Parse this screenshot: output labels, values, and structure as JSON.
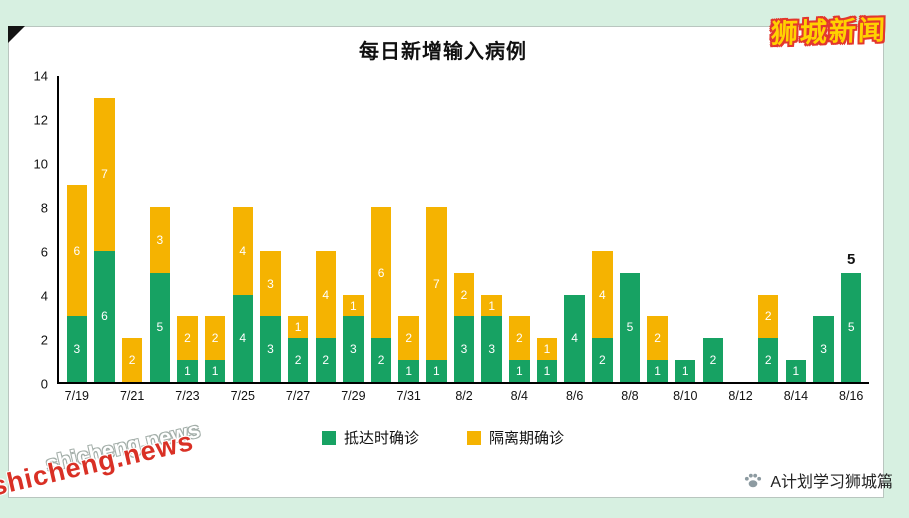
{
  "page": {
    "background": "#D7F0E1"
  },
  "logo": {
    "text": "狮城新闻"
  },
  "attribution": {
    "icon": "paw-icon",
    "text": "A计划学习狮城篇"
  },
  "watermark": {
    "text": "shicheng.news"
  },
  "chart_data": {
    "type": "bar",
    "variant": "stacked",
    "title": "每日新增输入病例",
    "x": [
      "7/19",
      "7/20",
      "7/21",
      "7/22",
      "7/23",
      "7/24",
      "7/25",
      "7/26",
      "7/27",
      "7/28",
      "7/29",
      "7/30",
      "7/31",
      "8/1",
      "8/2",
      "8/3",
      "8/4",
      "8/5",
      "8/6",
      "8/7",
      "8/8",
      "8/9",
      "8/10",
      "8/11",
      "8/12",
      "8/13",
      "8/14",
      "8/15",
      "8/16"
    ],
    "x_tick_labels": [
      "7/19",
      "7/21",
      "7/23",
      "7/25",
      "7/27",
      "7/29",
      "7/31",
      "8/2",
      "8/4",
      "8/6",
      "8/8",
      "8/10",
      "8/12",
      "8/14",
      "8/16"
    ],
    "series": [
      {
        "name": "抵达时确诊",
        "color": "#17A263",
        "values": [
          3,
          6,
          0,
          5,
          1,
          1,
          4,
          3,
          2,
          2,
          3,
          2,
          1,
          1,
          3,
          3,
          1,
          1,
          4,
          2,
          5,
          1,
          1,
          2,
          0,
          2,
          1,
          3,
          5
        ]
      },
      {
        "name": "隔离期确诊",
        "color": "#F5B301",
        "values": [
          6,
          7,
          2,
          3,
          2,
          2,
          4,
          3,
          1,
          4,
          1,
          6,
          2,
          7,
          2,
          1,
          2,
          1,
          0,
          4,
          0,
          2,
          0,
          0,
          0,
          2,
          0,
          0,
          0
        ]
      }
    ],
    "ylim": [
      0,
      14
    ],
    "yticks": [
      0,
      2,
      4,
      6,
      8,
      10,
      12,
      14
    ],
    "grid": false,
    "legend_position": "bottom",
    "annotation": {
      "bar_index": 28,
      "text": "5"
    }
  }
}
